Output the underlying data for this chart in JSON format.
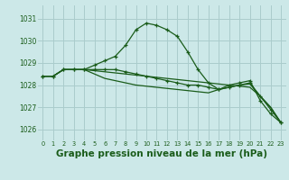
{
  "background_color": "#cce8e8",
  "grid_color": "#aacccc",
  "line_color": "#1a5c1a",
  "xlabel": "Graphe pression niveau de la mer (hPa)",
  "xlabel_fontsize": 7.5,
  "ylim": [
    1025.5,
    1031.6
  ],
  "xlim": [
    -0.5,
    23.5
  ],
  "yticks": [
    1026,
    1027,
    1028,
    1029,
    1030,
    1031
  ],
  "xticks": [
    0,
    1,
    2,
    3,
    4,
    5,
    6,
    7,
    8,
    9,
    10,
    11,
    12,
    13,
    14,
    15,
    16,
    17,
    18,
    19,
    20,
    21,
    22,
    23
  ],
  "line1": [
    1028.4,
    1028.4,
    1028.7,
    1028.7,
    1028.7,
    1028.9,
    1029.1,
    1029.3,
    1029.8,
    1030.5,
    1030.8,
    1030.7,
    1030.5,
    1030.2,
    1029.5,
    1028.7,
    1028.1,
    1027.8,
    1028.0,
    1028.1,
    1028.2,
    1027.3,
    1026.7,
    1026.3
  ],
  "line2": [
    1028.4,
    1028.4,
    1028.7,
    1028.7,
    1028.7,
    1028.65,
    1028.6,
    1028.55,
    1028.5,
    1028.45,
    1028.4,
    1028.35,
    1028.3,
    1028.25,
    1028.2,
    1028.15,
    1028.1,
    1028.05,
    1028.0,
    1027.95,
    1027.9,
    1027.5,
    1027.0,
    1026.3
  ],
  "line3": [
    1028.4,
    1028.4,
    1028.7,
    1028.7,
    1028.7,
    1028.5,
    1028.3,
    1028.2,
    1028.1,
    1028.0,
    1027.95,
    1027.9,
    1027.85,
    1027.8,
    1027.75,
    1027.7,
    1027.65,
    1027.8,
    1027.9,
    1028.0,
    1028.05,
    1027.5,
    1027.0,
    1026.3
  ],
  "line4_marked": [
    1028.4,
    1028.4,
    1028.7,
    1028.7,
    1028.7,
    1028.7,
    1028.7,
    1028.7,
    1028.6,
    1028.5,
    1028.4,
    1028.3,
    1028.2,
    1028.1,
    1028.0,
    1028.0,
    1027.9,
    1027.8,
    1027.9,
    1028.0,
    1028.1,
    1027.5,
    1026.9,
    1026.3
  ]
}
